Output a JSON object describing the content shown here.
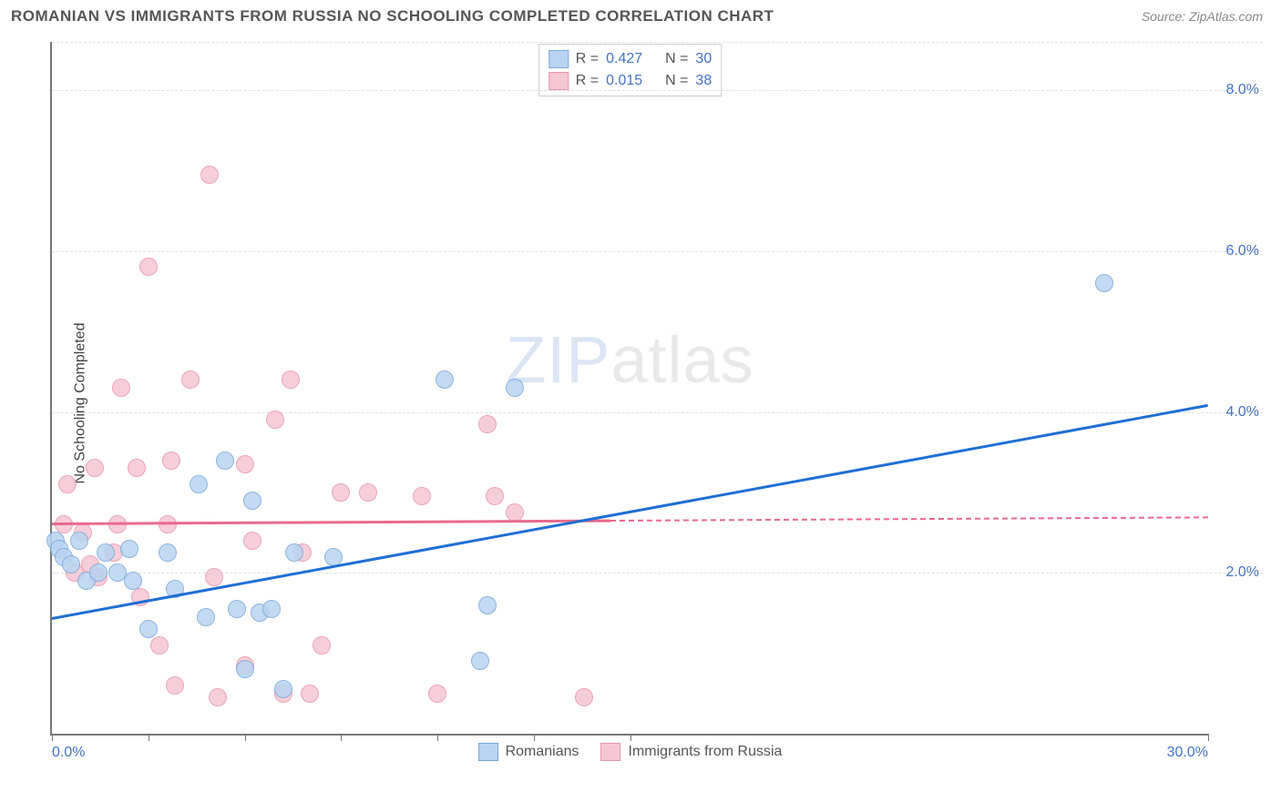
{
  "header": {
    "title": "ROMANIAN VS IMMIGRANTS FROM RUSSIA NO SCHOOLING COMPLETED CORRELATION CHART",
    "source_prefix": "Source: ",
    "source_name": "ZipAtlas.com"
  },
  "watermark": {
    "bold": "ZIP",
    "thin": "atlas"
  },
  "axes": {
    "ylabel": "No Schooling Completed",
    "xlim": [
      0,
      30
    ],
    "ylim": [
      0,
      8.6
    ],
    "xticks": [
      0,
      2.5,
      5,
      7.5,
      10,
      12.5,
      15,
      30
    ],
    "xticklabels": {
      "0": "0.0%",
      "30": "30.0%"
    },
    "yticks": [
      2,
      4,
      6,
      8
    ],
    "yticklabels": {
      "2": "2.0%",
      "4": "4.0%",
      "6": "6.0%",
      "8": "8.0%"
    },
    "grid_color": "#e0e0e0",
    "axis_color": "#777777",
    "tick_label_color": "#4472c4"
  },
  "series": {
    "romanians": {
      "label": "Romanians",
      "fill": "#b8d4f0",
      "stroke": "#7ba7d9",
      "marker_radius": 10,
      "R": "0.427",
      "N": "30",
      "trend": {
        "x1": 0,
        "y1": 1.45,
        "x2": 30,
        "y2": 4.1,
        "color": "#1f6fd4",
        "solid_until_x": 30
      },
      "points": [
        [
          0.1,
          2.4
        ],
        [
          0.2,
          2.3
        ],
        [
          0.3,
          2.2
        ],
        [
          0.5,
          2.1
        ],
        [
          0.7,
          2.4
        ],
        [
          0.9,
          1.9
        ],
        [
          1.2,
          2.0
        ],
        [
          1.4,
          2.25
        ],
        [
          1.7,
          2.0
        ],
        [
          2.0,
          2.3
        ],
        [
          2.1,
          1.9
        ],
        [
          2.5,
          1.3
        ],
        [
          3.0,
          2.25
        ],
        [
          3.2,
          1.8
        ],
        [
          3.8,
          3.1
        ],
        [
          4.0,
          1.45
        ],
        [
          4.5,
          3.4
        ],
        [
          4.8,
          1.55
        ],
        [
          5.0,
          0.8
        ],
        [
          5.2,
          2.9
        ],
        [
          5.4,
          1.5
        ],
        [
          5.7,
          1.55
        ],
        [
          6.0,
          0.55
        ],
        [
          6.3,
          2.25
        ],
        [
          7.3,
          2.2
        ],
        [
          10.2,
          4.4
        ],
        [
          11.1,
          0.9
        ],
        [
          11.3,
          1.6
        ],
        [
          12.0,
          4.3
        ],
        [
          27.3,
          5.6
        ]
      ]
    },
    "russia": {
      "label": "Immigrants from Russia",
      "fill": "#f5c6d3",
      "stroke": "#e996ab",
      "marker_radius": 10,
      "R": "0.015",
      "N": "38",
      "trend": {
        "x1": 0,
        "y1": 2.62,
        "x2": 30,
        "y2": 2.7,
        "color": "#e96a8d",
        "solid_until_x": 14.5
      },
      "points": [
        [
          0.3,
          2.6
        ],
        [
          0.4,
          3.1
        ],
        [
          0.6,
          2.0
        ],
        [
          0.8,
          2.5
        ],
        [
          1.0,
          2.1
        ],
        [
          1.1,
          3.3
        ],
        [
          1.2,
          1.95
        ],
        [
          1.6,
          2.25
        ],
        [
          1.7,
          2.6
        ],
        [
          1.8,
          4.3
        ],
        [
          2.2,
          3.3
        ],
        [
          2.3,
          1.7
        ],
        [
          2.5,
          5.8
        ],
        [
          2.8,
          1.1
        ],
        [
          3.0,
          2.6
        ],
        [
          3.1,
          3.4
        ],
        [
          3.2,
          0.6
        ],
        [
          3.6,
          4.4
        ],
        [
          4.1,
          6.95
        ],
        [
          4.2,
          1.95
        ],
        [
          4.3,
          0.45
        ],
        [
          5.0,
          3.35
        ],
        [
          5.0,
          0.85
        ],
        [
          5.2,
          2.4
        ],
        [
          5.8,
          3.9
        ],
        [
          6.0,
          0.5
        ],
        [
          6.2,
          4.4
        ],
        [
          6.5,
          2.25
        ],
        [
          6.7,
          0.5
        ],
        [
          7.0,
          1.1
        ],
        [
          7.5,
          3.0
        ],
        [
          8.2,
          3.0
        ],
        [
          9.6,
          2.95
        ],
        [
          10.0,
          0.5
        ],
        [
          11.3,
          3.85
        ],
        [
          11.5,
          2.95
        ],
        [
          12.0,
          2.75
        ],
        [
          13.8,
          0.45
        ]
      ]
    }
  },
  "stat_legend": {
    "R_label": "R =",
    "N_label": "N ="
  }
}
